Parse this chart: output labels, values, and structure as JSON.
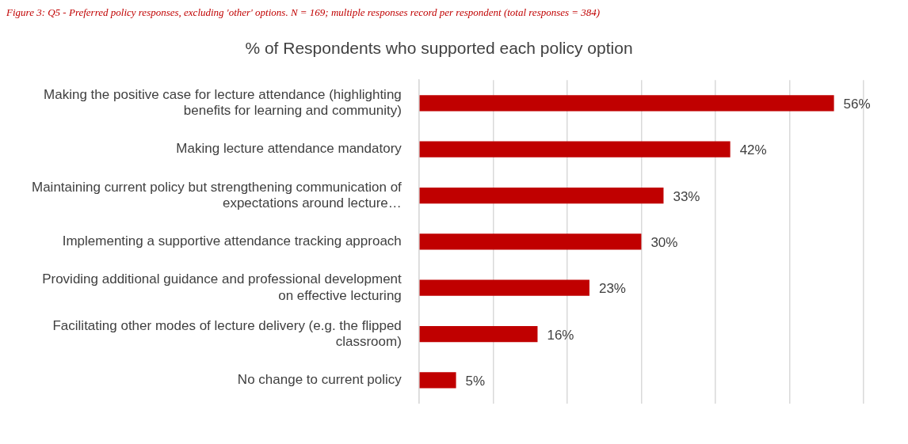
{
  "chart_data": {
    "type": "bar",
    "orientation": "horizontal",
    "title": "% of Respondents who supported each policy option",
    "annotations": [
      "Figure 3: Q5 - Preferred policy responses, excluding 'other' options. N = 169; multiple responses record per respondent (total responses = 384)"
    ],
    "categories": [
      "Making the positive case for lecture attendance (highlighting benefits for learning and community)",
      "Making lecture attendance mandatory",
      "Maintaining current policy but strengthening communication of expectations around lecture…",
      "Implementing a supportive attendance tracking approach",
      "Providing additional guidance and professional development on effective lecturing",
      "Facilitating other modes of lecture delivery (e.g. the flipped classroom)",
      "No change to current policy"
    ],
    "values": [
      56,
      42,
      33,
      30,
      23,
      16,
      5
    ],
    "value_labels": [
      "56%",
      "42%",
      "33%",
      "30%",
      "23%",
      "16%",
      "5%"
    ],
    "color": "#c00000",
    "xlim": [
      0,
      60
    ],
    "xticks": [
      {
        "value": 0,
        "label": null
      },
      {
        "value": 10,
        "label": null
      },
      {
        "value": 20,
        "label": null
      },
      {
        "value": 30,
        "label": null
      },
      {
        "value": 40,
        "label": null
      },
      {
        "value": 50,
        "label": null
      },
      {
        "value": 60,
        "label": null
      }
    ],
    "grid": "x",
    "legend": false
  }
}
